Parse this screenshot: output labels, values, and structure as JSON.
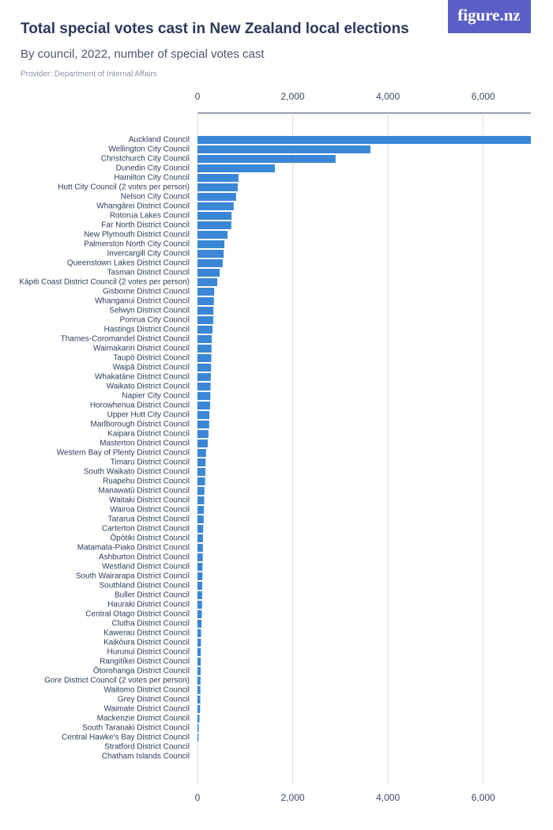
{
  "logo": "figure.nz",
  "chart_data": {
    "type": "bar",
    "orientation": "horizontal",
    "title": "Total special votes cast in New Zealand local elections",
    "subtitle": "By council, 2022, number of special votes cast",
    "provider": "Provider: Department of Internal Affairs",
    "color": "#3a87d6",
    "grid": true,
    "xlim": [
      0,
      7000
    ],
    "xticks": [
      0,
      {
        "value": 2000,
        "label": "2,000"
      },
      {
        "value": 4000,
        "label": "4,000"
      },
      {
        "value": 6000,
        "label": "6,000"
      }
    ],
    "categories": [
      "Auckland Council",
      "Wellington City Council",
      "Christchurch City Council",
      "Dunedin City Council",
      "Hamilton City Council",
      "Hutt City Council (2 votes per person)",
      "Nelson City Council",
      "Whangārei District Council",
      "Rotorua Lakes Council",
      "Far North District Council",
      "New Plymouth District Council",
      "Palmerston North City Council",
      "Invercargill City Council",
      "Queenstown Lakes District Council",
      "Tasman District Council",
      "Kāpiti Coast District Council (2 votes per person)",
      "Gisborne District Council",
      "Whanganui District Council",
      "Selwyn District Council",
      "Porirua City Council",
      "Hastings District Council",
      "Thames-Coromandel District Council",
      "Waimakariri District Council",
      "Taupō District Council",
      "Waipā District Council",
      "Whakatāne District Council",
      "Waikato District Council",
      "Napier City Council",
      "Horowhenua District Council",
      "Upper Hutt City Council",
      "Marlborough District Council",
      "Kaipara District Council",
      "Masterton District Council",
      "Western Bay of Plenty District Council",
      "Timaru District Council",
      "South Waikato District Council",
      "Ruapehu District Council",
      "Manawatū District Council",
      "Waitaki District Council",
      "Wairoa District Council",
      "Tararua District Council",
      "Carterton District Council",
      "Ōpōtiki District Council",
      "Matamata-Piako District Council",
      "Ashburton District Council",
      "Westland District Council",
      "South Wairarapa District Council",
      "Southland District Council",
      "Buller District Council",
      "Hauraki District Council",
      "Central Otago District Council",
      "Clutha District Council",
      "Kawerau District Council",
      "Kaikōura District Council",
      "Hurunui District Council",
      "Rangitīkei District Council",
      "Ōtorohanga District Council",
      "Gore District Council (2 votes per person)",
      "Waitomo District Council",
      "Grey District Council",
      "Waimate District Council",
      "Mackenzie District Council",
      "South Taranaki District Council",
      "Central Hawke's Bay District Council",
      "Stratford District Council",
      "Chatham Islands Council"
    ],
    "values": [
      7000,
      3630,
      2900,
      1625,
      860,
      845,
      810,
      760,
      715,
      710,
      630,
      565,
      550,
      530,
      465,
      415,
      350,
      345,
      335,
      330,
      315,
      300,
      295,
      290,
      285,
      280,
      275,
      270,
      265,
      250,
      245,
      230,
      215,
      180,
      170,
      165,
      160,
      145,
      140,
      135,
      130,
      120,
      115,
      113,
      110,
      105,
      103,
      100,
      98,
      95,
      90,
      85,
      75,
      72,
      70,
      68,
      65,
      63,
      60,
      58,
      55,
      40,
      25,
      20,
      0,
      0
    ]
  }
}
